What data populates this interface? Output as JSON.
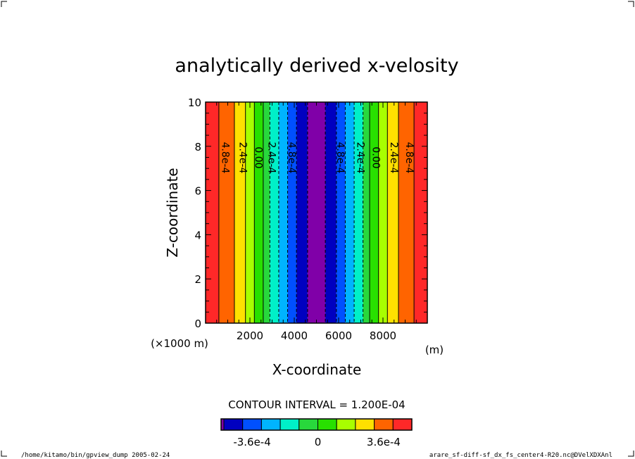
{
  "chart_data": {
    "type": "heatmap",
    "title": "analytically derived x-velosity",
    "xlabel": "X-coordinate",
    "ylabel": "Z-coordinate",
    "x_unit": "(m)",
    "x_scale_note": "(×1000 m)",
    "xlim": [
      0,
      10000
    ],
    "ylim": [
      0,
      10
    ],
    "x_ticks": [
      2000,
      4000,
      6000,
      8000
    ],
    "x_tick_labels": [
      "2000",
      "4000",
      "6000",
      "8000"
    ],
    "y_ticks": [
      0,
      2,
      4,
      6,
      8,
      10
    ],
    "y_tick_labels": [
      "0",
      "2",
      "4",
      "6",
      "8",
      "10"
    ],
    "contour_interval_text": "CONTOUR INTERVAL = 1.200E-04",
    "colorbar": {
      "colors": [
        "#0000c0",
        "#0050ff",
        "#00b4ff",
        "#00f0c8",
        "#28d83c",
        "#28e000",
        "#a8ff00",
        "#ffe000",
        "#ff6400",
        "#ff2828"
      ],
      "end_color": "#8000a8",
      "tick_labels": [
        "-3.6e-4",
        "0",
        "3.6e-4"
      ]
    },
    "bands": [
      {
        "x0": 0,
        "x1": 600,
        "color": "#ff2828"
      },
      {
        "x0": 600,
        "x1": 1300,
        "color": "#ff6400"
      },
      {
        "x0": 1300,
        "x1": 1800,
        "color": "#ffe000"
      },
      {
        "x0": 1800,
        "x1": 2200,
        "color": "#a8ff00"
      },
      {
        "x0": 2200,
        "x1": 2600,
        "color": "#28e000"
      },
      {
        "x0": 2600,
        "x1": 2900,
        "color": "#28d83c"
      },
      {
        "x0": 2900,
        "x1": 3300,
        "color": "#00f0c8"
      },
      {
        "x0": 3300,
        "x1": 3700,
        "color": "#00b4ff"
      },
      {
        "x0": 3700,
        "x1": 4100,
        "color": "#0050ff"
      },
      {
        "x0": 4100,
        "x1": 4600,
        "color": "#0000c0"
      },
      {
        "x0": 4600,
        "x1": 5400,
        "color": "#8000a8"
      },
      {
        "x0": 5400,
        "x1": 5900,
        "color": "#0000c0"
      },
      {
        "x0": 5900,
        "x1": 6300,
        "color": "#0050ff"
      },
      {
        "x0": 6300,
        "x1": 6700,
        "color": "#00b4ff"
      },
      {
        "x0": 6700,
        "x1": 7100,
        "color": "#00f0c8"
      },
      {
        "x0": 7100,
        "x1": 7400,
        "color": "#28d83c"
      },
      {
        "x0": 7400,
        "x1": 7800,
        "color": "#28e000"
      },
      {
        "x0": 7800,
        "x1": 8200,
        "color": "#a8ff00"
      },
      {
        "x0": 8200,
        "x1": 8700,
        "color": "#ffe000"
      },
      {
        "x0": 8700,
        "x1": 9400,
        "color": "#ff6400"
      },
      {
        "x0": 9400,
        "x1": 10000,
        "color": "#ff2828"
      }
    ],
    "contour_lines": [
      {
        "x": 600,
        "dashed": false
      },
      {
        "x": 1300,
        "dashed": false
      },
      {
        "x": 1800,
        "dashed": false
      },
      {
        "x": 2200,
        "dashed": false
      },
      {
        "x": 2600,
        "dashed": false
      },
      {
        "x": 2900,
        "dashed": true
      },
      {
        "x": 3300,
        "dashed": true
      },
      {
        "x": 3700,
        "dashed": true
      },
      {
        "x": 4100,
        "dashed": true
      },
      {
        "x": 4600,
        "dashed": true
      },
      {
        "x": 5400,
        "dashed": true
      },
      {
        "x": 5900,
        "dashed": true
      },
      {
        "x": 6300,
        "dashed": true
      },
      {
        "x": 6700,
        "dashed": true
      },
      {
        "x": 7100,
        "dashed": true
      },
      {
        "x": 7400,
        "dashed": false
      },
      {
        "x": 7800,
        "dashed": false
      },
      {
        "x": 8200,
        "dashed": false
      },
      {
        "x": 8700,
        "dashed": false
      },
      {
        "x": 9400,
        "dashed": false
      }
    ],
    "contour_labels": [
      {
        "x": 900,
        "text": "4.8e-4"
      },
      {
        "x": 1700,
        "text": "2.4e-4"
      },
      {
        "x": 2400,
        "text": "0.00"
      },
      {
        "x": 3000,
        "text": "2.4e-4"
      },
      {
        "x": 3900,
        "text": "4.8e-4"
      },
      {
        "x": 6100,
        "text": "4.8e-4"
      },
      {
        "x": 7000,
        "text": "2.4e-4"
      },
      {
        "x": 7700,
        "text": "0.00"
      },
      {
        "x": 8500,
        "text": "2.4e-4"
      },
      {
        "x": 9200,
        "text": "4.8e-4"
      }
    ]
  },
  "footer": {
    "left": "/home/kitamo/bin/gpview_dump  2005-02-24",
    "right": "arare_sf-diff-sf_dx_fs_center4-R20.nc@DVelXDXAnl"
  }
}
